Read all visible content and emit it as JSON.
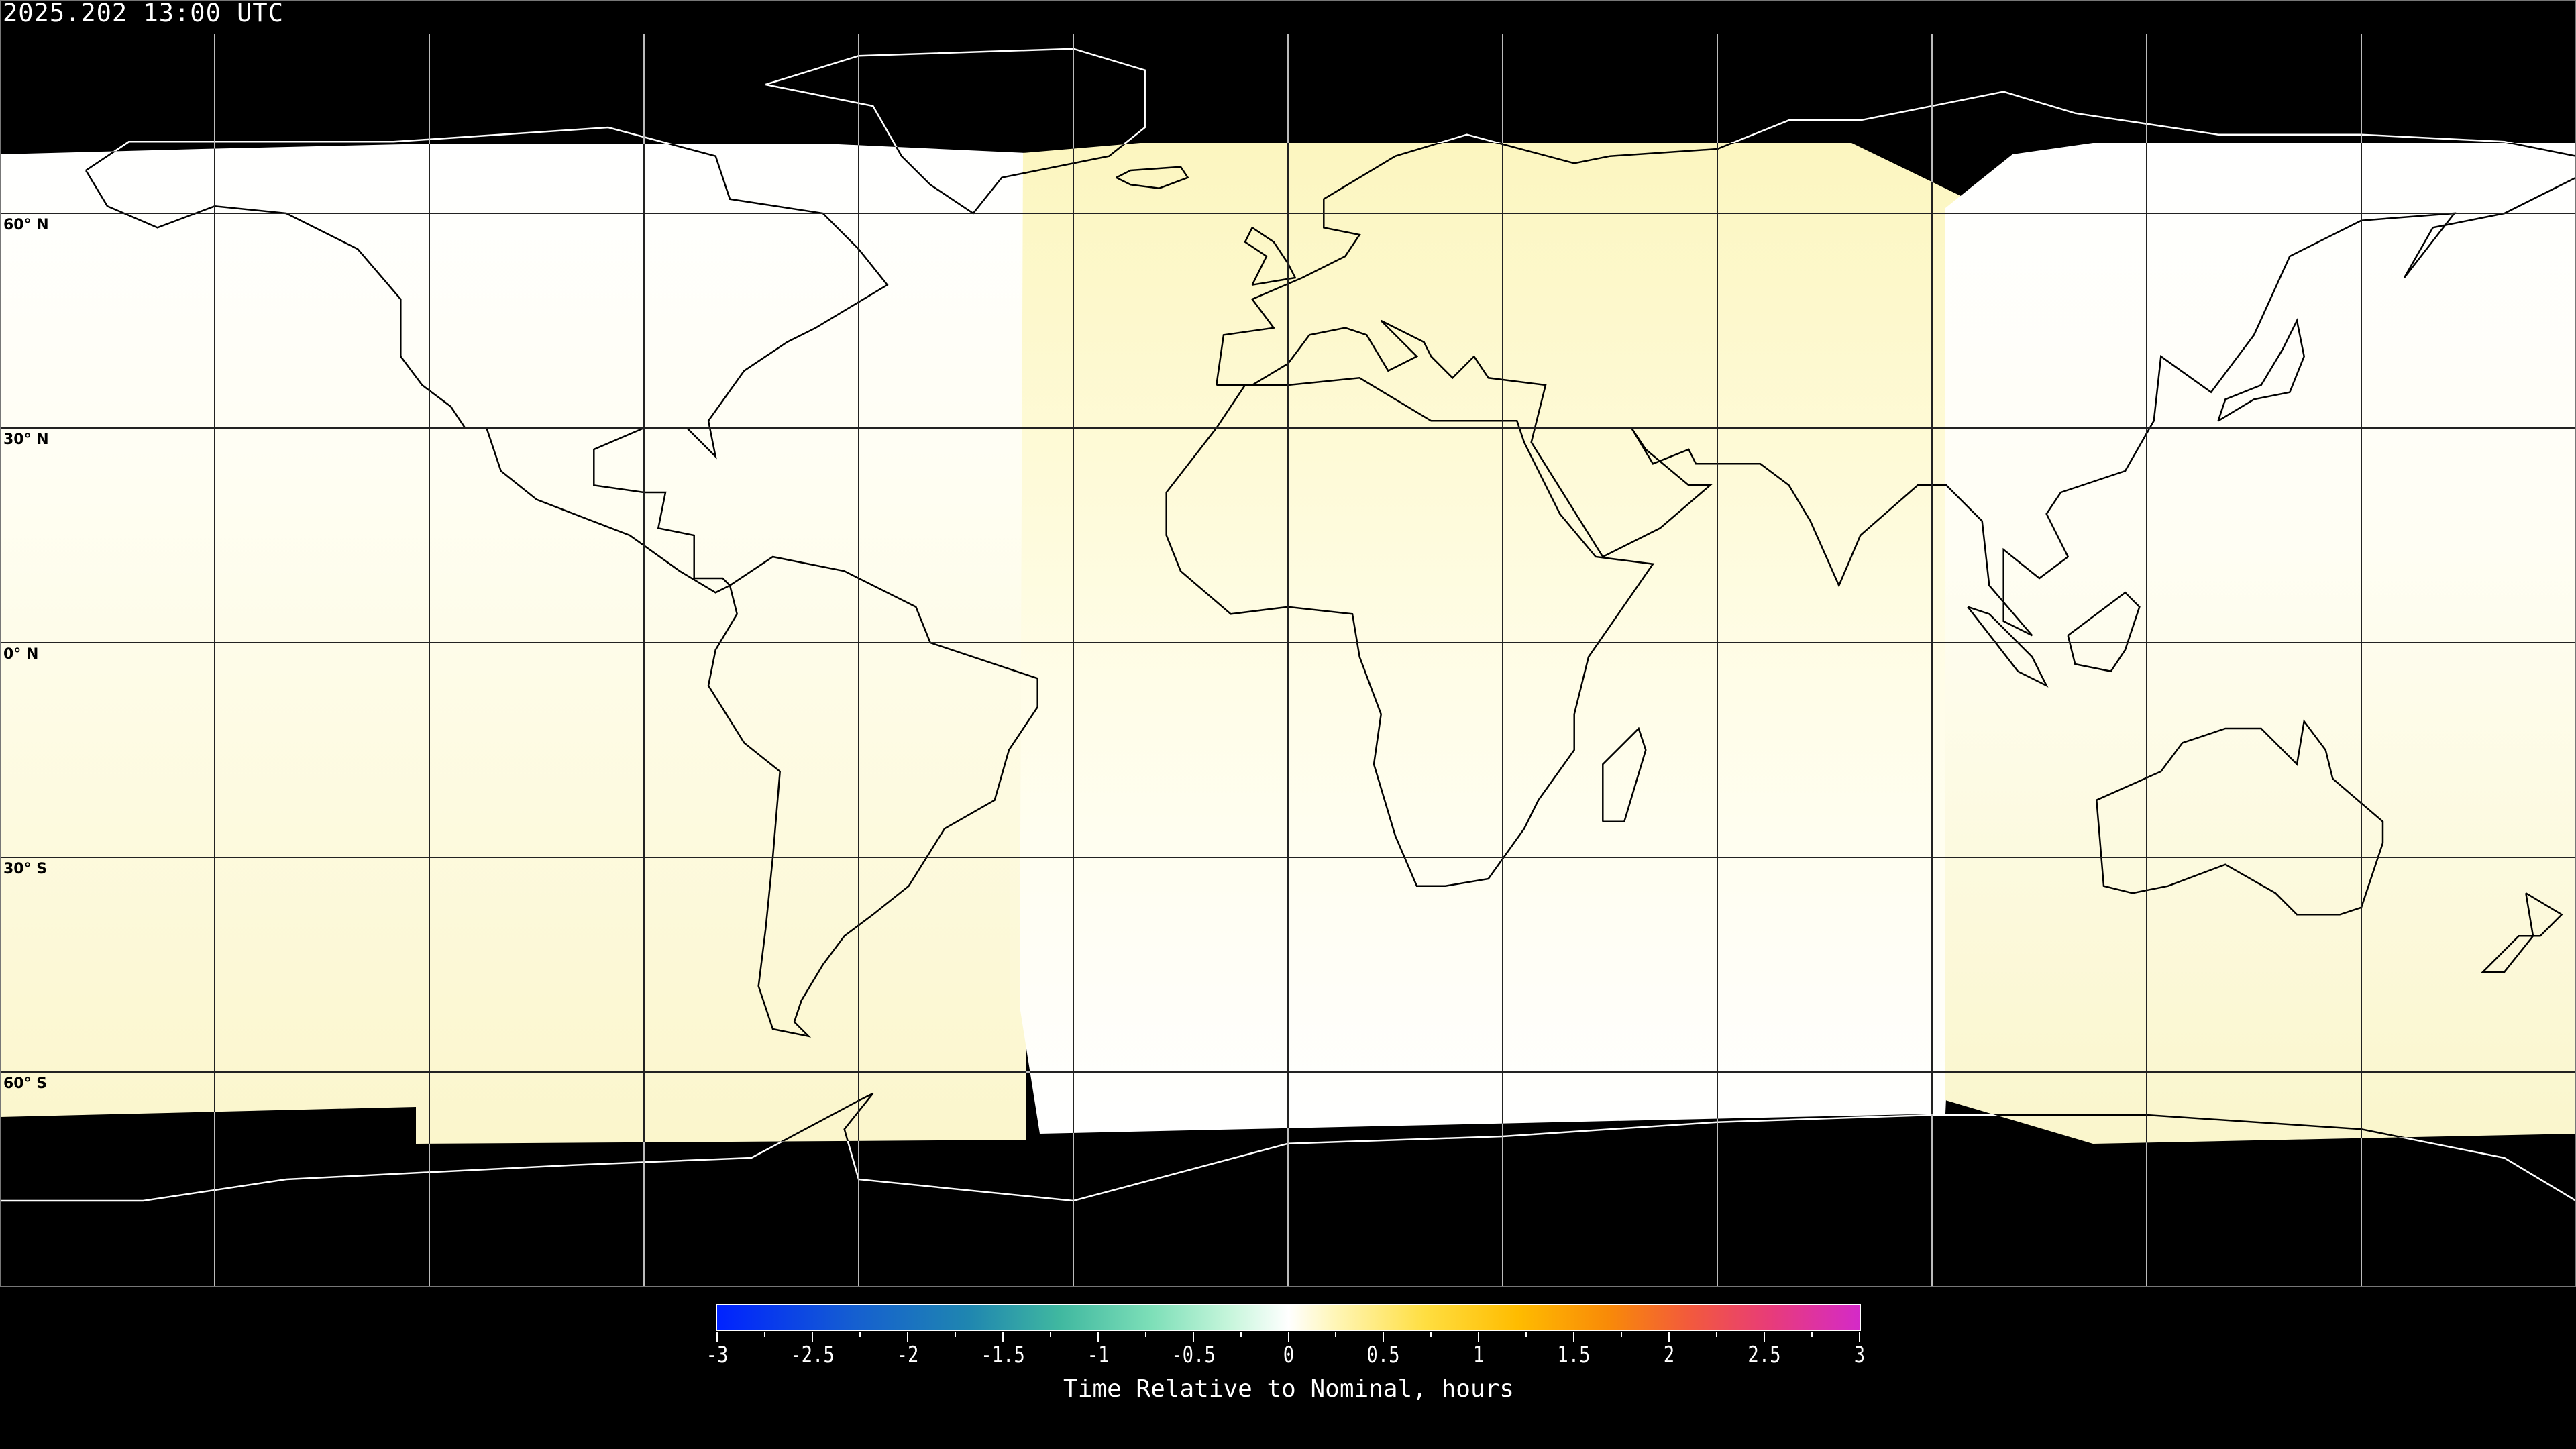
{
  "header": {
    "title": "2025.202 13:00 UTC"
  },
  "map": {
    "projection": "equirectangular",
    "lon_range": [
      -180,
      180
    ],
    "lat_range": [
      -90,
      90
    ],
    "grid_spacing_degrees": 30,
    "lat_labels": [
      "60° N",
      "30° N",
      "0° N",
      "30° S",
      "60° S"
    ],
    "background_color": "#000000"
  },
  "chart_data": {
    "type": "heatmap",
    "colorbar": {
      "label": "Time Relative to Nominal, hours",
      "range": [
        -3,
        3
      ],
      "ticks": [
        "-3",
        "-2.5",
        "-2",
        "-1.5",
        "-1",
        "-0.5",
        "0",
        "0.5",
        "1",
        "1.5",
        "2",
        "2.5",
        "3"
      ],
      "colors": {
        "min": "#0022ff",
        "mid": "#ffffff",
        "max": "#d42ac8"
      }
    },
    "regions": [
      {
        "lon_extent": [
          -180,
          -77
        ],
        "value_range_hours": [
          0,
          0.25
        ]
      },
      {
        "lon_extent": [
          -77,
          95
        ],
        "value_range_hours": [
          0,
          0.25
        ]
      },
      {
        "lon_extent": [
          95,
          180
        ],
        "value_range_hours": [
          0,
          0.25
        ]
      }
    ]
  }
}
